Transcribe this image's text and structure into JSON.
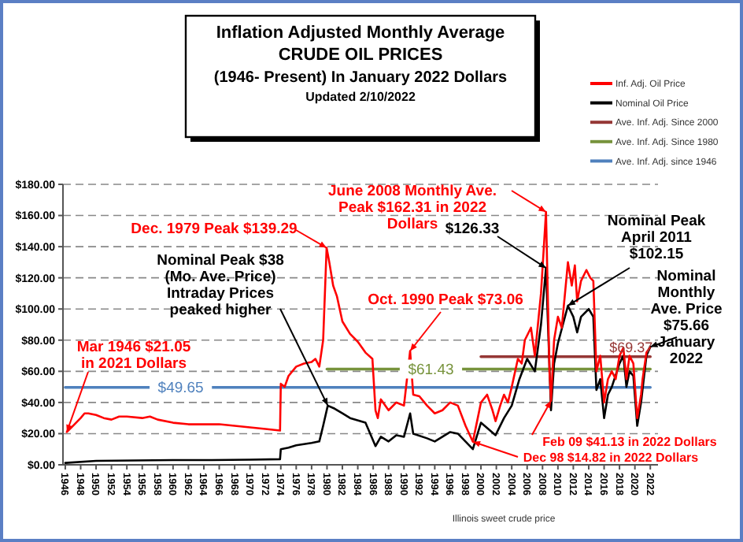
{
  "chart_data": {
    "type": "line",
    "title": "Inflation Adjusted Monthly Average CRUDE OIL PRICES",
    "subtitle": "(1946- Present) In January 2022 Dollars",
    "xlim": [
      1945.7,
      2023
    ],
    "xticks": [
      1946,
      1948,
      1950,
      1952,
      1954,
      1956,
      1958,
      1960,
      1962,
      1964,
      1966,
      1968,
      1970,
      1972,
      1974,
      1976,
      1978,
      1980,
      1982,
      1984,
      1986,
      1988,
      1990,
      1992,
      1994,
      1996,
      1998,
      2000,
      2002,
      2004,
      2006,
      2008,
      2010,
      2012,
      2014,
      2016,
      2018,
      2020,
      2022
    ],
    "ylim": [
      0,
      180
    ],
    "yticks": [
      {
        "value": 0,
        "label": "$0.00"
      },
      {
        "value": 20,
        "label": "$20.00"
      },
      {
        "value": 40,
        "label": "$40.00"
      },
      {
        "value": 60,
        "label": "$60.00"
      },
      {
        "value": 80,
        "label": "$80.00"
      },
      {
        "value": 100,
        "label": "$100.00"
      },
      {
        "value": 120,
        "label": "$120.00"
      },
      {
        "value": 140,
        "label": "$140.00"
      },
      {
        "value": 160,
        "label": "$160.00"
      },
      {
        "value": 180,
        "label": "$180.00"
      }
    ],
    "grid": "y",
    "legend": "top right",
    "series": [
      {
        "name": "Inf. Adj. Oil Price",
        "color": "#ff0000",
        "x": [
          1946.2,
          1947,
          1948,
          1948.5,
          1949,
          1950,
          1951,
          1952,
          1953,
          1954,
          1956,
          1957,
          1958,
          1960,
          1962,
          1964,
          1966,
          1968,
          1970,
          1972,
          1973.9,
          1974,
          1974.5,
          1975,
          1976,
          1977,
          1978,
          1978.5,
          1979,
          1979.5,
          1979.95,
          1980.3,
          1980.8,
          1981.3,
          1982,
          1983,
          1984,
          1985,
          1985.9,
          1986.3,
          1986.6,
          1987,
          1988,
          1989,
          1990,
          1990.8,
          1991.2,
          1992,
          1993,
          1994,
          1995,
          1996,
          1997,
          1998,
          1998.95,
          1999.5,
          2000,
          2000.8,
          2001.5,
          2001.9,
          2002.5,
          2003,
          2003.5,
          2004,
          2004.8,
          2005.3,
          2005.7,
          2006.5,
          2007,
          2007.8,
          2008.45,
          2008.9,
          2009.1,
          2009.5,
          2010,
          2010.5,
          2011.3,
          2011.8,
          2012.2,
          2012.5,
          2013,
          2013.7,
          2014.2,
          2014.6,
          2015,
          2015.5,
          2016,
          2016.5,
          2017,
          2017.5,
          2018,
          2018.5,
          2018.9,
          2019.3,
          2019.8,
          2020.3,
          2020.8,
          2021,
          2021.5,
          2022
        ],
        "values": [
          21.05,
          25,
          30,
          33,
          33,
          32,
          30,
          29,
          31,
          31,
          30,
          31,
          29,
          27,
          26,
          26,
          26,
          25,
          24,
          23,
          22,
          52,
          50,
          57,
          63,
          65,
          66,
          68,
          63,
          80,
          139.29,
          130,
          115,
          108,
          92,
          84,
          79,
          72,
          68,
          35,
          30,
          42,
          35,
          40,
          38,
          73.06,
          45,
          44,
          38,
          33,
          35,
          40,
          38,
          25,
          14.82,
          28,
          40,
          45,
          35,
          28,
          38,
          45,
          40,
          50,
          68,
          65,
          80,
          88,
          70,
          110,
          162.31,
          60,
          41.13,
          80,
          95,
          88,
          130,
          115,
          128,
          105,
          118,
          125,
          120,
          118,
          60,
          70,
          40,
          55,
          60,
          55,
          70,
          75,
          55,
          70,
          65,
          30,
          45,
          55,
          72,
          75.66
        ]
      },
      {
        "name": "Nominal Oil Price",
        "color": "#000000",
        "x": [
          1946,
          1950,
          1955,
          1960,
          1965,
          1970,
          1973.9,
          1974,
          1975,
          1976,
          1978,
          1979,
          1979.5,
          1980.1,
          1981,
          1982,
          1983,
          1985,
          1986.3,
          1987,
          1988,
          1989,
          1990,
          1990.8,
          1991.2,
          1993,
          1994,
          1996,
          1997,
          1998.95,
          2000,
          2001.9,
          2003,
          2004,
          2005,
          2006,
          2007,
          2007.8,
          2008.45,
          2009.1,
          2009.5,
          2010,
          2011.3,
          2012,
          2012.5,
          2013,
          2014,
          2014.6,
          2015,
          2015.5,
          2016,
          2016.5,
          2017,
          2018,
          2018.5,
          2018.9,
          2019.3,
          2019.8,
          2020.3,
          2020.8,
          2021.5,
          2022
        ],
        "values": [
          1.2,
          2.5,
          2.8,
          3,
          3,
          3.3,
          3.6,
          10,
          11,
          12.5,
          14,
          15,
          25,
          38,
          36,
          33,
          30,
          27,
          12,
          18,
          15,
          19,
          18,
          33,
          20,
          17,
          15,
          21,
          20,
          10,
          27,
          19,
          30,
          38,
          55,
          68,
          60,
          90,
          126.33,
          35,
          65,
          78,
          102.15,
          95,
          85,
          95,
          100,
          95,
          48,
          55,
          30,
          45,
          50,
          65,
          70,
          50,
          60,
          57,
          25,
          40,
          70,
          75.66
        ]
      },
      {
        "name": "Ave. Inf. Adj. Since 2000",
        "color": "#953735",
        "x": [
          2000,
          2022
        ],
        "values": [
          69.37,
          69.37
        ]
      },
      {
        "name": "Ave. Inf. Adj. Since 1980",
        "color": "#77933c",
        "x": [
          1980,
          2022
        ],
        "values": [
          61.43,
          61.43
        ]
      },
      {
        "name": "Ave. Inf. Adj. since 1946",
        "color": "#4f81bd",
        "x": [
          1946,
          2022
        ],
        "values": [
          49.65,
          49.65
        ]
      }
    ],
    "annotations": [
      {
        "text": "Mar 1946 $21.05 in 2021 Dollars",
        "x": 1946.2,
        "y": 21.05
      },
      {
        "text": "Dec. 1979 Peak $139.29",
        "x": 1979.95,
        "y": 139.29
      },
      {
        "text": "Nominal Peak $38 (Mo. Ave. Price) Intraday Prices peaked higher",
        "x": 1980.1,
        "y": 38
      },
      {
        "text": "June 2008 Monthly Ave. Peak $162.31 in 2022 Dollars",
        "x": 2008.45,
        "y": 162.31
      },
      {
        "text": "$126.33",
        "x": 2008.45,
        "y": 126.33
      },
      {
        "text": "Nominal Peak April 2011 $102.15",
        "x": 2011.3,
        "y": 102.15
      },
      {
        "text": "Oct. 1990 Peak $73.06",
        "x": 1990.8,
        "y": 73.06
      },
      {
        "text": "Nominal Monthly Ave. Price $75.66 January 2022",
        "x": 2022,
        "y": 75.66
      },
      {
        "text": "Feb 09 $41.13 in 2022 Dollars",
        "x": 2009.1,
        "y": 41.13
      },
      {
        "text": "Dec 98 $14.82 in 2022 Dollars",
        "x": 1998.95,
        "y": 14.82
      },
      {
        "text": "$49.65",
        "x": 1961,
        "y": 49.65
      },
      {
        "text": "$61.43",
        "x": 1993.5,
        "y": 61.43
      },
      {
        "text": "$69.37",
        "x": 2019.5,
        "y": 69.37
      },
      "Updated 2/10/2022",
      "Illinois sweet crude price"
    ]
  }
}
